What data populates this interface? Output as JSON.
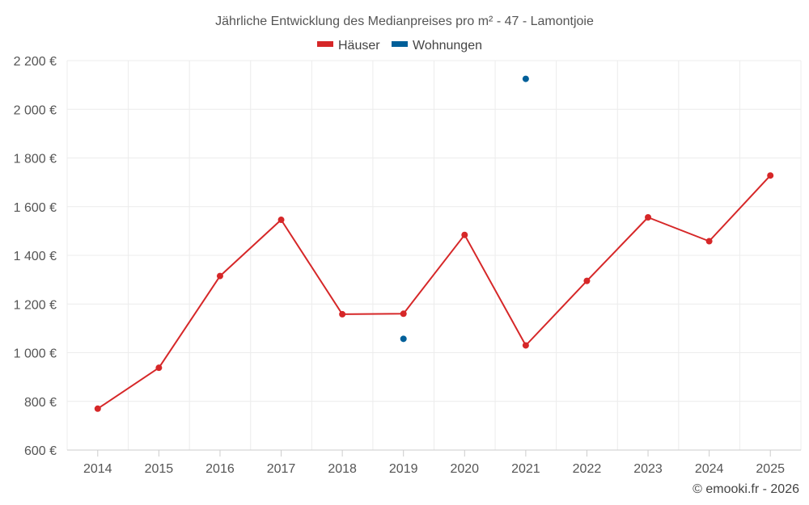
{
  "chart_data": {
    "type": "line",
    "title": "Jährliche Entwicklung des Medianpreises pro m² - 47 - Lamontjoie",
    "categories": [
      "2014",
      "2015",
      "2016",
      "2017",
      "2018",
      "2019",
      "2020",
      "2021",
      "2022",
      "2023",
      "2024",
      "2025"
    ],
    "series": [
      {
        "name": "Häuser",
        "color": "#d62728",
        "values": [
          770,
          938,
          1315,
          1546,
          1158,
          1160,
          1484,
          1030,
          1295,
          1556,
          1458,
          1728
        ]
      },
      {
        "name": "Wohnungen",
        "color": "#005f99",
        "values": [
          null,
          null,
          null,
          null,
          null,
          1057,
          null,
          2125,
          null,
          null,
          null,
          null
        ]
      }
    ],
    "y_ticks": [
      600,
      800,
      1000,
      1200,
      1400,
      1600,
      1800,
      2000,
      2200
    ],
    "y_tick_labels": [
      "600 €",
      "800 €",
      "1 000 €",
      "1 200 €",
      "1 400 €",
      "1 600 €",
      "1 800 €",
      "2 000 €",
      "2 200 €"
    ],
    "ylim": [
      600,
      2200
    ],
    "xlabel": "",
    "ylabel": "",
    "legend_position": "top-center",
    "grid": true
  },
  "credit": "© emooki.fr - 2026"
}
